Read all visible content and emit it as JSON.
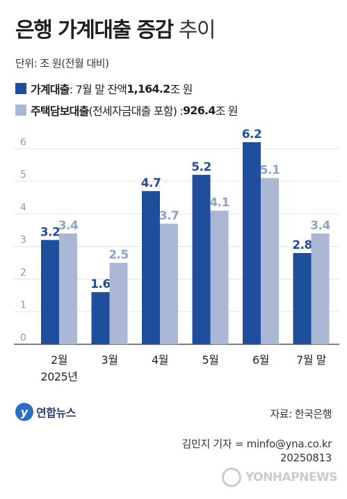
{
  "title": {
    "bold": "은행 가계대출 증감",
    "light": "추이"
  },
  "unit": "단위: 조 원(전월 대비)",
  "legend": [
    {
      "label": "가계대출",
      "detail": ": 7월 말 잔액 ",
      "amount": "1,164.2",
      "suffix": "조 원",
      "color": "#1f4e9c"
    },
    {
      "label": "주택담보대출",
      "detail": "(전세자금대출 포함) : ",
      "amount": "926.4",
      "suffix": "조 원",
      "color": "#aab8d6"
    }
  ],
  "chart_data": {
    "type": "bar",
    "categories": [
      "2월",
      "3월",
      "4월",
      "5월",
      "6월",
      "7월 말"
    ],
    "x_year_label": "2025년",
    "series": [
      {
        "name": "가계대출",
        "values": [
          3.2,
          1.6,
          4.7,
          5.2,
          6.2,
          2.8
        ],
        "color": "#1f4e9c"
      },
      {
        "name": "주택담보대출",
        "values": [
          3.4,
          2.5,
          3.7,
          4.1,
          5.1,
          3.4
        ],
        "color": "#aab8d6"
      }
    ],
    "data_labels": [
      [
        "3.2",
        "1.6",
        "4.7",
        "5.2",
        "6.2",
        "2.8"
      ],
      [
        "3.4",
        "2.5",
        "3.7",
        "4.1",
        "5.1",
        "3.4"
      ]
    ],
    "yticks": [
      "0",
      "1",
      "2",
      "3",
      "4",
      "5",
      "6"
    ],
    "ylim": [
      0,
      6.5
    ],
    "grid": true
  },
  "source": "자료: 한국은행",
  "logo": {
    "mark": "y",
    "name": "연합뉴스"
  },
  "credit": {
    "reporter": "김민지 기자 = minfo@yna.co.kr",
    "date": "20250813"
  },
  "watermark": "YONHAPNEWS"
}
